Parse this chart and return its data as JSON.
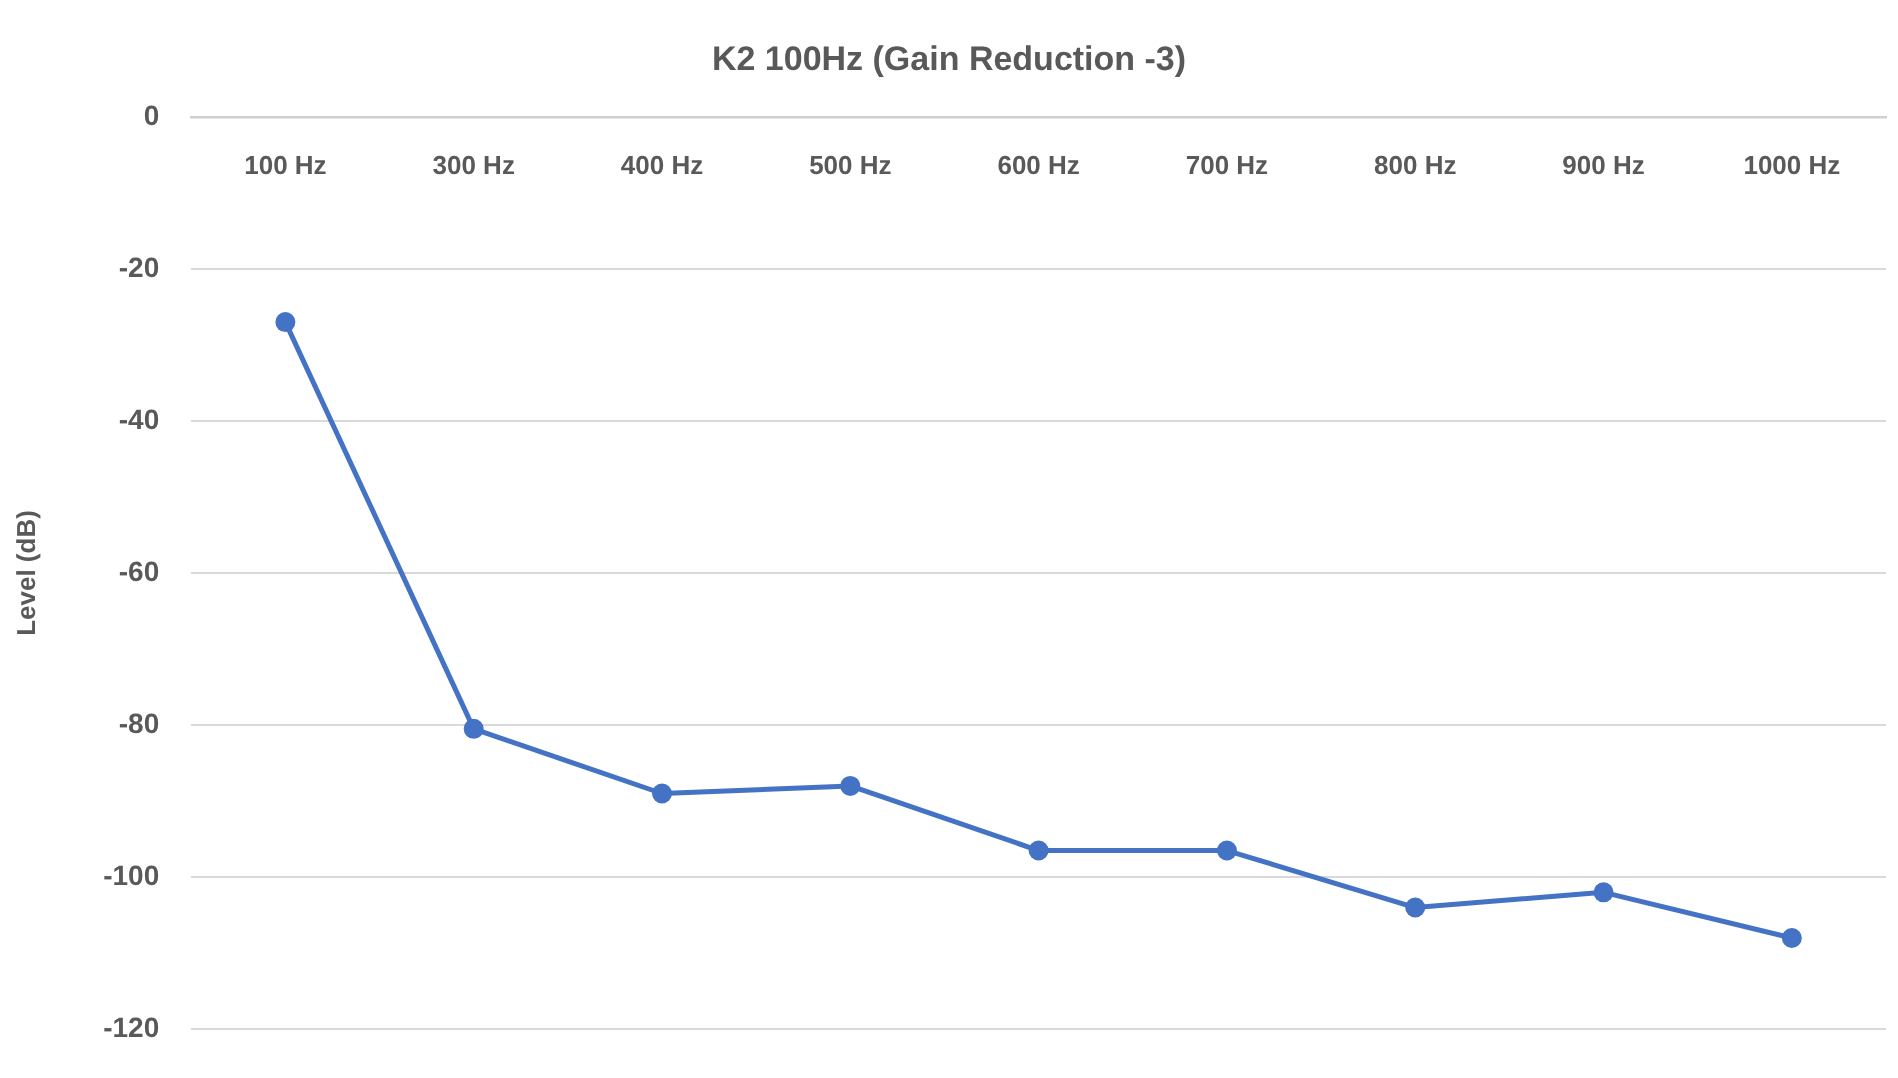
{
  "chart_data": {
    "type": "line",
    "title": "K2 100Hz (Gain Reduction -3)",
    "ylabel": "Level (dB)",
    "categories": [
      "100 Hz",
      "300 Hz",
      "400 Hz",
      "500 Hz",
      "600 Hz",
      "700 Hz",
      "800 Hz",
      "900 Hz",
      "1000 Hz"
    ],
    "values": [
      -27,
      -80.5,
      -89,
      -88,
      -96.5,
      -96.5,
      -104,
      -102,
      -108
    ],
    "color": "#4472c4",
    "ylim": [
      -120,
      0
    ],
    "yticks": [
      -120,
      -100,
      -80,
      -60,
      -40,
      -20,
      0
    ],
    "grid": "y",
    "marker": "circle",
    "line_style": "solid"
  }
}
